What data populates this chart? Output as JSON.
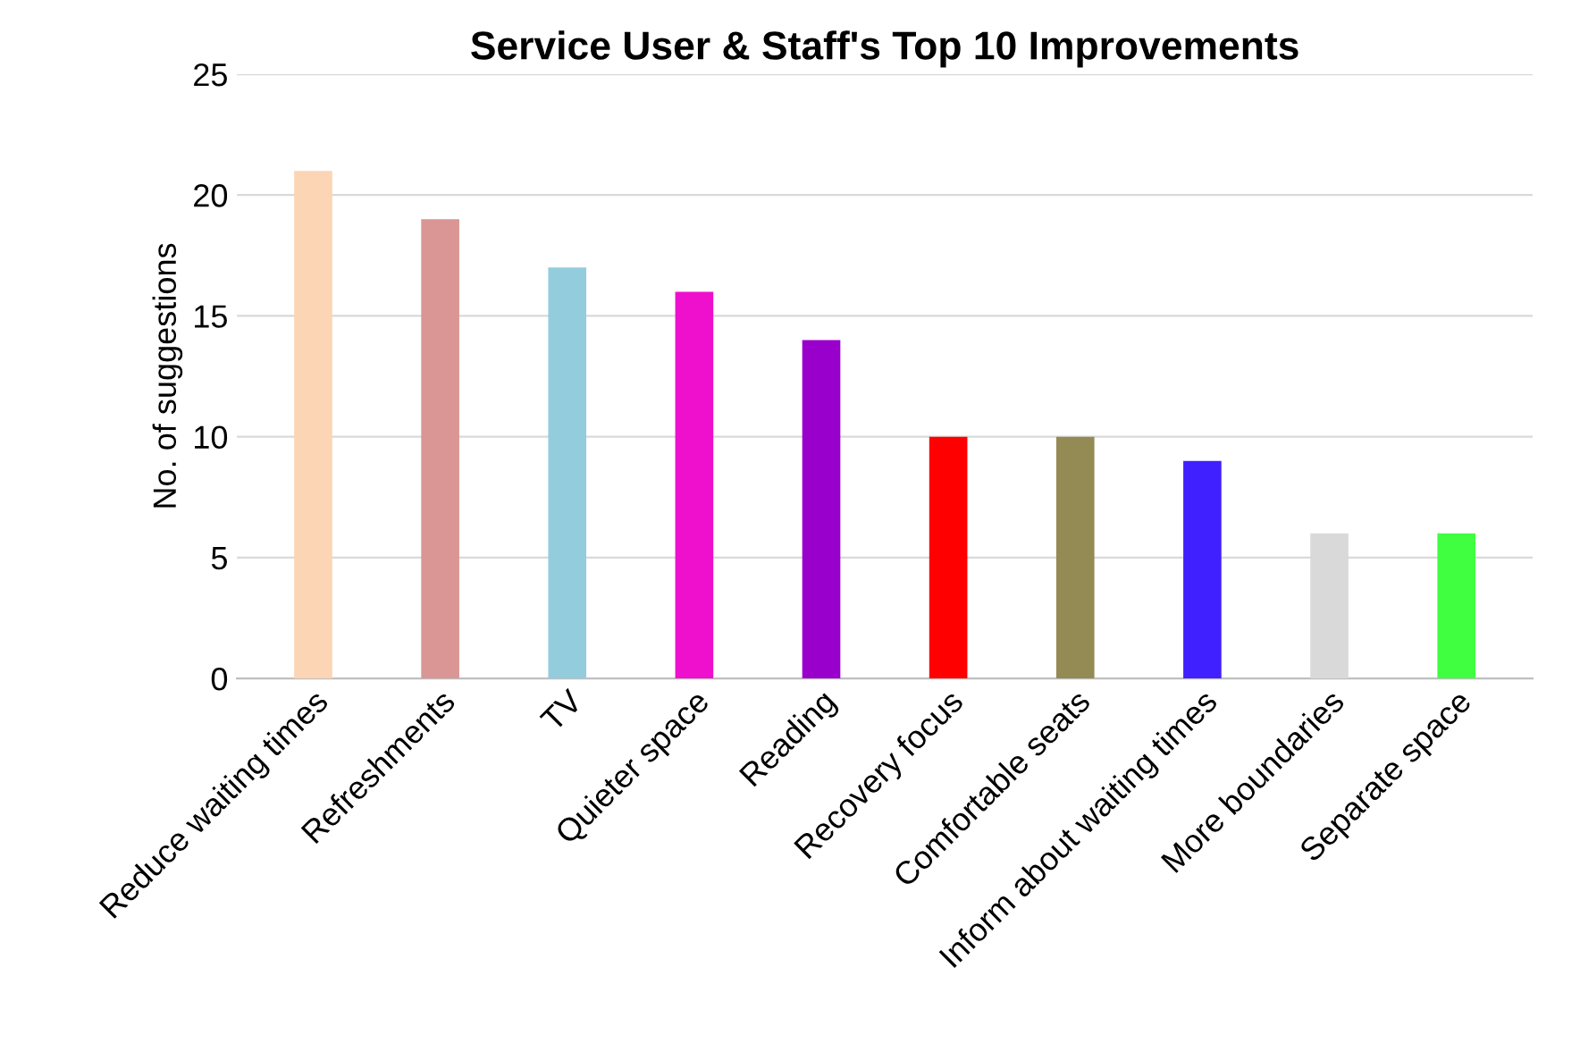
{
  "chart_data": {
    "type": "bar",
    "title": "Service User & Staff's Top 10 Improvements",
    "ylabel": "No. of suggestions",
    "categories": [
      "Reduce waiting times",
      "Refreshments",
      "TV",
      "Quieter space",
      "Reading",
      "Recovery focus",
      "Comfortable seats",
      "Inform about waiting times",
      "More boundaries",
      "Separate space"
    ],
    "values": [
      21,
      19,
      17,
      16,
      14,
      10,
      10,
      9,
      6,
      6
    ],
    "colors": [
      "#fcd5b5",
      "#d99694",
      "#93cddd",
      "#ee10cc",
      "#9900cc",
      "#ff0000",
      "#948a54",
      "#4020ff",
      "#d9d9d9",
      "#40ff40"
    ],
    "ylim": [
      0,
      25
    ],
    "yticks": [
      0,
      5,
      10,
      15,
      20,
      25
    ],
    "grid": "y"
  }
}
